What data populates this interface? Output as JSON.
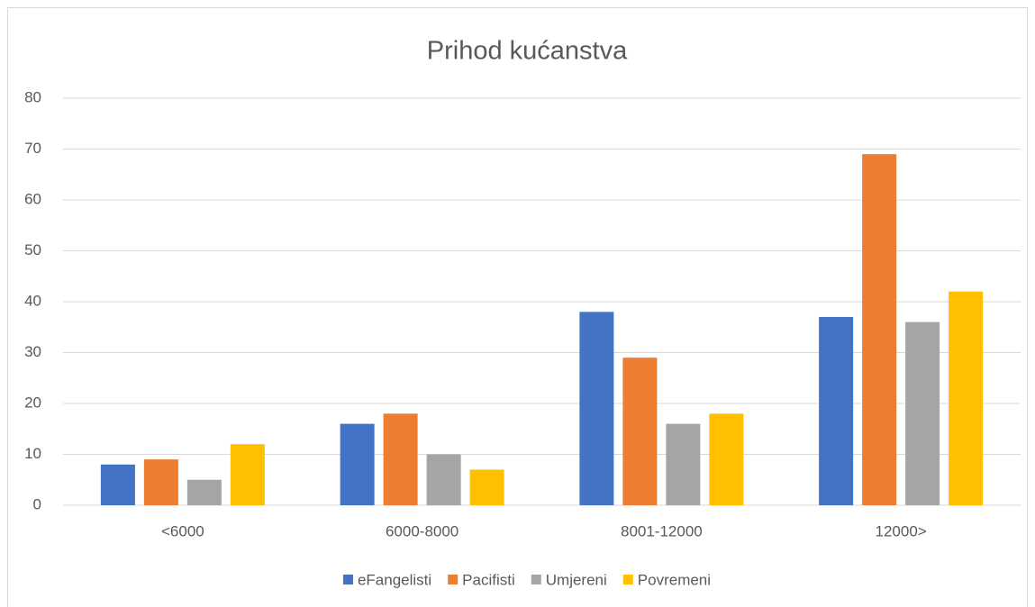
{
  "chart_data": {
    "type": "bar",
    "title": "Prihod kućanstva",
    "categories": [
      "<6000",
      "6000-8000",
      "8001-12000",
      "12000>"
    ],
    "series": [
      {
        "name": "eFangelisti",
        "color": "#4472c4",
        "values": [
          8,
          16,
          38,
          37
        ]
      },
      {
        "name": "Pacifisti",
        "color": "#ed7d31",
        "values": [
          9,
          18,
          29,
          69
        ]
      },
      {
        "name": "Umjereni",
        "color": "#a5a5a5",
        "values": [
          5,
          10,
          16,
          36
        ]
      },
      {
        "name": "Povremeni",
        "color": "#ffc000",
        "values": [
          12,
          7,
          18,
          42
        ]
      }
    ],
    "ylim": [
      0,
      80
    ],
    "yticks": [
      0,
      10,
      20,
      30,
      40,
      50,
      60,
      70,
      80
    ],
    "grid": true,
    "legend": "bottom"
  }
}
